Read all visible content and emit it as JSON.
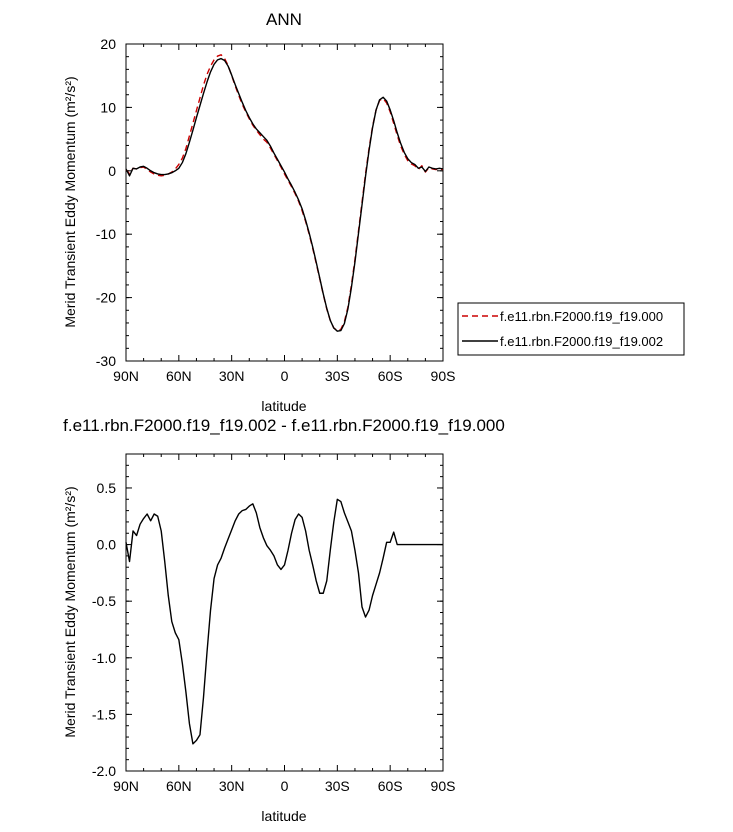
{
  "chart_data": [
    {
      "type": "line",
      "title": "ANN",
      "xlabel": "latitude",
      "ylabel": "Merid Transient Eddy Momentum (m²/s²)",
      "xlim": [
        90,
        -90
      ],
      "ylim": [
        -30,
        20
      ],
      "x_ticks": [
        90,
        60,
        30,
        0,
        -30,
        -60,
        -90
      ],
      "x_tick_labels": [
        "90N",
        "60N",
        "30N",
        "0",
        "30S",
        "60S",
        "90S"
      ],
      "y_ticks": [
        20,
        10,
        0,
        -10,
        -20,
        -30
      ],
      "y_tick_labels": [
        "20",
        "10",
        "0",
        "-10",
        "-20",
        "-30"
      ],
      "legend_position": "right",
      "series": [
        {
          "name": "f.e11.rbn.F2000.f19_f19.000",
          "color": "#cc0000",
          "dash": "dashed",
          "x": [
            90,
            88,
            86,
            84,
            82,
            80,
            78,
            76,
            74,
            72,
            70,
            68,
            66,
            64,
            62,
            60,
            58,
            56,
            54,
            52,
            50,
            48,
            46,
            44,
            42,
            40,
            38,
            36,
            34,
            32,
            30,
            28,
            26,
            24,
            22,
            20,
            18,
            16,
            14,
            12,
            10,
            8,
            6,
            4,
            2,
            0,
            -2,
            -4,
            -6,
            -8,
            -10,
            -12,
            -14,
            -16,
            -18,
            -20,
            -22,
            -24,
            -26,
            -28,
            -30,
            -32,
            -34,
            -36,
            -38,
            -40,
            -42,
            -44,
            -46,
            -48,
            -50,
            -52,
            -54,
            -56,
            -58,
            -60,
            -62,
            -64,
            -66,
            -68,
            -70,
            -72,
            -74,
            -76,
            -78,
            -80,
            -82,
            -84,
            -86,
            -88,
            -90
          ],
          "y": [
            0.2,
            -0.5,
            0.4,
            0.3,
            0.5,
            0.6,
            0.2,
            -0.2,
            -0.5,
            -0.7,
            -0.8,
            -0.7,
            -0.5,
            -0.2,
            0.3,
            1.0,
            2.0,
            3.5,
            5.5,
            7.5,
            9.5,
            11.5,
            13.5,
            15.2,
            16.5,
            17.5,
            18.1,
            18.3,
            17.7,
            16.6,
            15.0,
            13.4,
            11.9,
            10.5,
            9.3,
            8.2,
            7.2,
            6.4,
            5.7,
            5.0,
            4.5,
            3.6,
            2.6,
            1.6,
            0.6,
            -0.5,
            -1.5,
            -2.5,
            -3.6,
            -4.8,
            -6.3,
            -8.0,
            -10.0,
            -12.2,
            -14.6,
            -17.0,
            -19.5,
            -21.8,
            -23.6,
            -24.8,
            -25.2,
            -25.0,
            -23.8,
            -21.5,
            -18.0,
            -14.0,
            -9.5,
            -5.0,
            -0.5,
            3.5,
            7.0,
            9.6,
            11.1,
            11.4,
            10.7,
            9.3,
            7.5,
            5.6,
            3.9,
            2.6,
            1.6,
            1.1,
            0.8,
            0.2,
            0.8,
            -0.2,
            0.5,
            0.3,
            0.2,
            0.3,
            0.2
          ]
        },
        {
          "name": "f.e11.rbn.F2000.f19_f19.002",
          "color": "#000000",
          "dash": "solid",
          "x": [
            90,
            88,
            86,
            84,
            82,
            80,
            78,
            76,
            74,
            72,
            70,
            68,
            66,
            64,
            62,
            60,
            58,
            56,
            54,
            52,
            50,
            48,
            46,
            44,
            42,
            40,
            38,
            36,
            34,
            32,
            30,
            28,
            26,
            24,
            22,
            20,
            18,
            16,
            14,
            12,
            10,
            8,
            6,
            4,
            2,
            0,
            -2,
            -4,
            -6,
            -8,
            -10,
            -12,
            -14,
            -16,
            -18,
            -20,
            -22,
            -24,
            -26,
            -28,
            -30,
            -32,
            -34,
            -36,
            -38,
            -40,
            -42,
            -44,
            -46,
            -48,
            -50,
            -52,
            -54,
            -56,
            -58,
            -60,
            -62,
            -64,
            -66,
            -68,
            -70,
            -72,
            -74,
            -76,
            -78,
            -80,
            -82,
            -84,
            -86,
            -88,
            -90
          ],
          "y": [
            0.3,
            -0.8,
            0.4,
            0.3,
            0.6,
            0.7,
            0.4,
            0.0,
            -0.3,
            -0.5,
            -0.6,
            -0.6,
            -0.5,
            -0.3,
            0.0,
            0.4,
            1.3,
            2.7,
            4.5,
            6.4,
            8.4,
            10.3,
            12.2,
            14.0,
            15.6,
            16.8,
            17.5,
            17.7,
            17.4,
            16.5,
            15.1,
            13.6,
            12.2,
            10.8,
            9.5,
            8.4,
            7.4,
            6.6,
            6.0,
            5.4,
            4.8,
            3.9,
            2.8,
            1.8,
            0.8,
            -0.2,
            -1.3,
            -2.3,
            -3.4,
            -4.6,
            -6.0,
            -7.8,
            -9.8,
            -12.0,
            -14.4,
            -16.9,
            -19.4,
            -21.7,
            -23.6,
            -24.8,
            -25.3,
            -25.2,
            -24.1,
            -21.8,
            -18.4,
            -14.4,
            -9.9,
            -5.4,
            -0.9,
            3.2,
            6.8,
            9.6,
            11.2,
            11.6,
            11.0,
            9.6,
            7.9,
            6.0,
            4.3,
            2.9,
            1.9,
            1.3,
            1.0,
            0.4,
            0.6,
            -0.1,
            0.6,
            0.4,
            0.3,
            0.4,
            0.3
          ]
        }
      ]
    },
    {
      "type": "line",
      "title": "f.e11.rbn.F2000.f19_f19.002 - f.e11.rbn.F2000.f19_f19.000",
      "xlabel": "latitude",
      "ylabel": "Merid Transient Eddy Momentum (m²/s²)",
      "xlim": [
        90,
        -90
      ],
      "ylim": [
        -2.0,
        0.8
      ],
      "x_ticks": [
        90,
        60,
        30,
        0,
        -30,
        -60,
        -90
      ],
      "x_tick_labels": [
        "90N",
        "60N",
        "30N",
        "0",
        "30S",
        "60S",
        "90S"
      ],
      "y_ticks": [
        0.5,
        0.0,
        -0.5,
        -1.0,
        -1.5,
        -2.0
      ],
      "y_tick_labels": [
        "0.5",
        "0.0",
        "-0.5",
        "-1.0",
        "-1.5",
        "-2.0"
      ],
      "series": [
        {
          "color": "#000000",
          "dash": "solid",
          "x": [
            90,
            88,
            86,
            84,
            82,
            80,
            78,
            76,
            74,
            72,
            70,
            68,
            66,
            64,
            62,
            60,
            58,
            56,
            54,
            52,
            50,
            48,
            46,
            44,
            42,
            40,
            38,
            36,
            34,
            32,
            30,
            28,
            26,
            24,
            22,
            20,
            18,
            16,
            14,
            12,
            10,
            8,
            6,
            4,
            2,
            0,
            -2,
            -4,
            -6,
            -8,
            -10,
            -12,
            -14,
            -16,
            -18,
            -20,
            -22,
            -24,
            -26,
            -28,
            -30,
            -32,
            -34,
            -36,
            -38,
            -40,
            -42,
            -44,
            -46,
            -48,
            -50,
            -52,
            -54,
            -56,
            -58,
            -60,
            -62,
            -64,
            -66,
            -68,
            -70,
            -72,
            -74,
            -76,
            -78,
            -80,
            -82,
            -84,
            -86,
            -88,
            -90
          ],
          "y": [
            0.02,
            -0.15,
            0.12,
            0.08,
            0.18,
            0.23,
            0.27,
            0.21,
            0.27,
            0.25,
            0.12,
            -0.15,
            -0.45,
            -0.68,
            -0.78,
            -0.84,
            -1.05,
            -1.3,
            -1.58,
            -1.76,
            -1.73,
            -1.68,
            -1.35,
            -0.95,
            -0.58,
            -0.3,
            -0.18,
            -0.12,
            -0.03,
            0.05,
            0.13,
            0.21,
            0.27,
            0.3,
            0.31,
            0.34,
            0.36,
            0.28,
            0.15,
            0.06,
            -0.01,
            -0.05,
            -0.1,
            -0.18,
            -0.22,
            -0.18,
            -0.05,
            0.1,
            0.22,
            0.27,
            0.24,
            0.12,
            -0.05,
            -0.18,
            -0.32,
            -0.43,
            -0.43,
            -0.32,
            -0.05,
            0.2,
            0.4,
            0.38,
            0.28,
            0.2,
            0.12,
            -0.05,
            -0.25,
            -0.55,
            -0.64,
            -0.58,
            -0.45,
            -0.35,
            -0.25,
            -0.12,
            0.02,
            0.02,
            0.11,
            0.0,
            0.0,
            0.0,
            0.0,
            0.0,
            0.0,
            0.0,
            0.0,
            0.0,
            0.0,
            0.0,
            0.0,
            0.0,
            0.0
          ]
        }
      ]
    }
  ]
}
